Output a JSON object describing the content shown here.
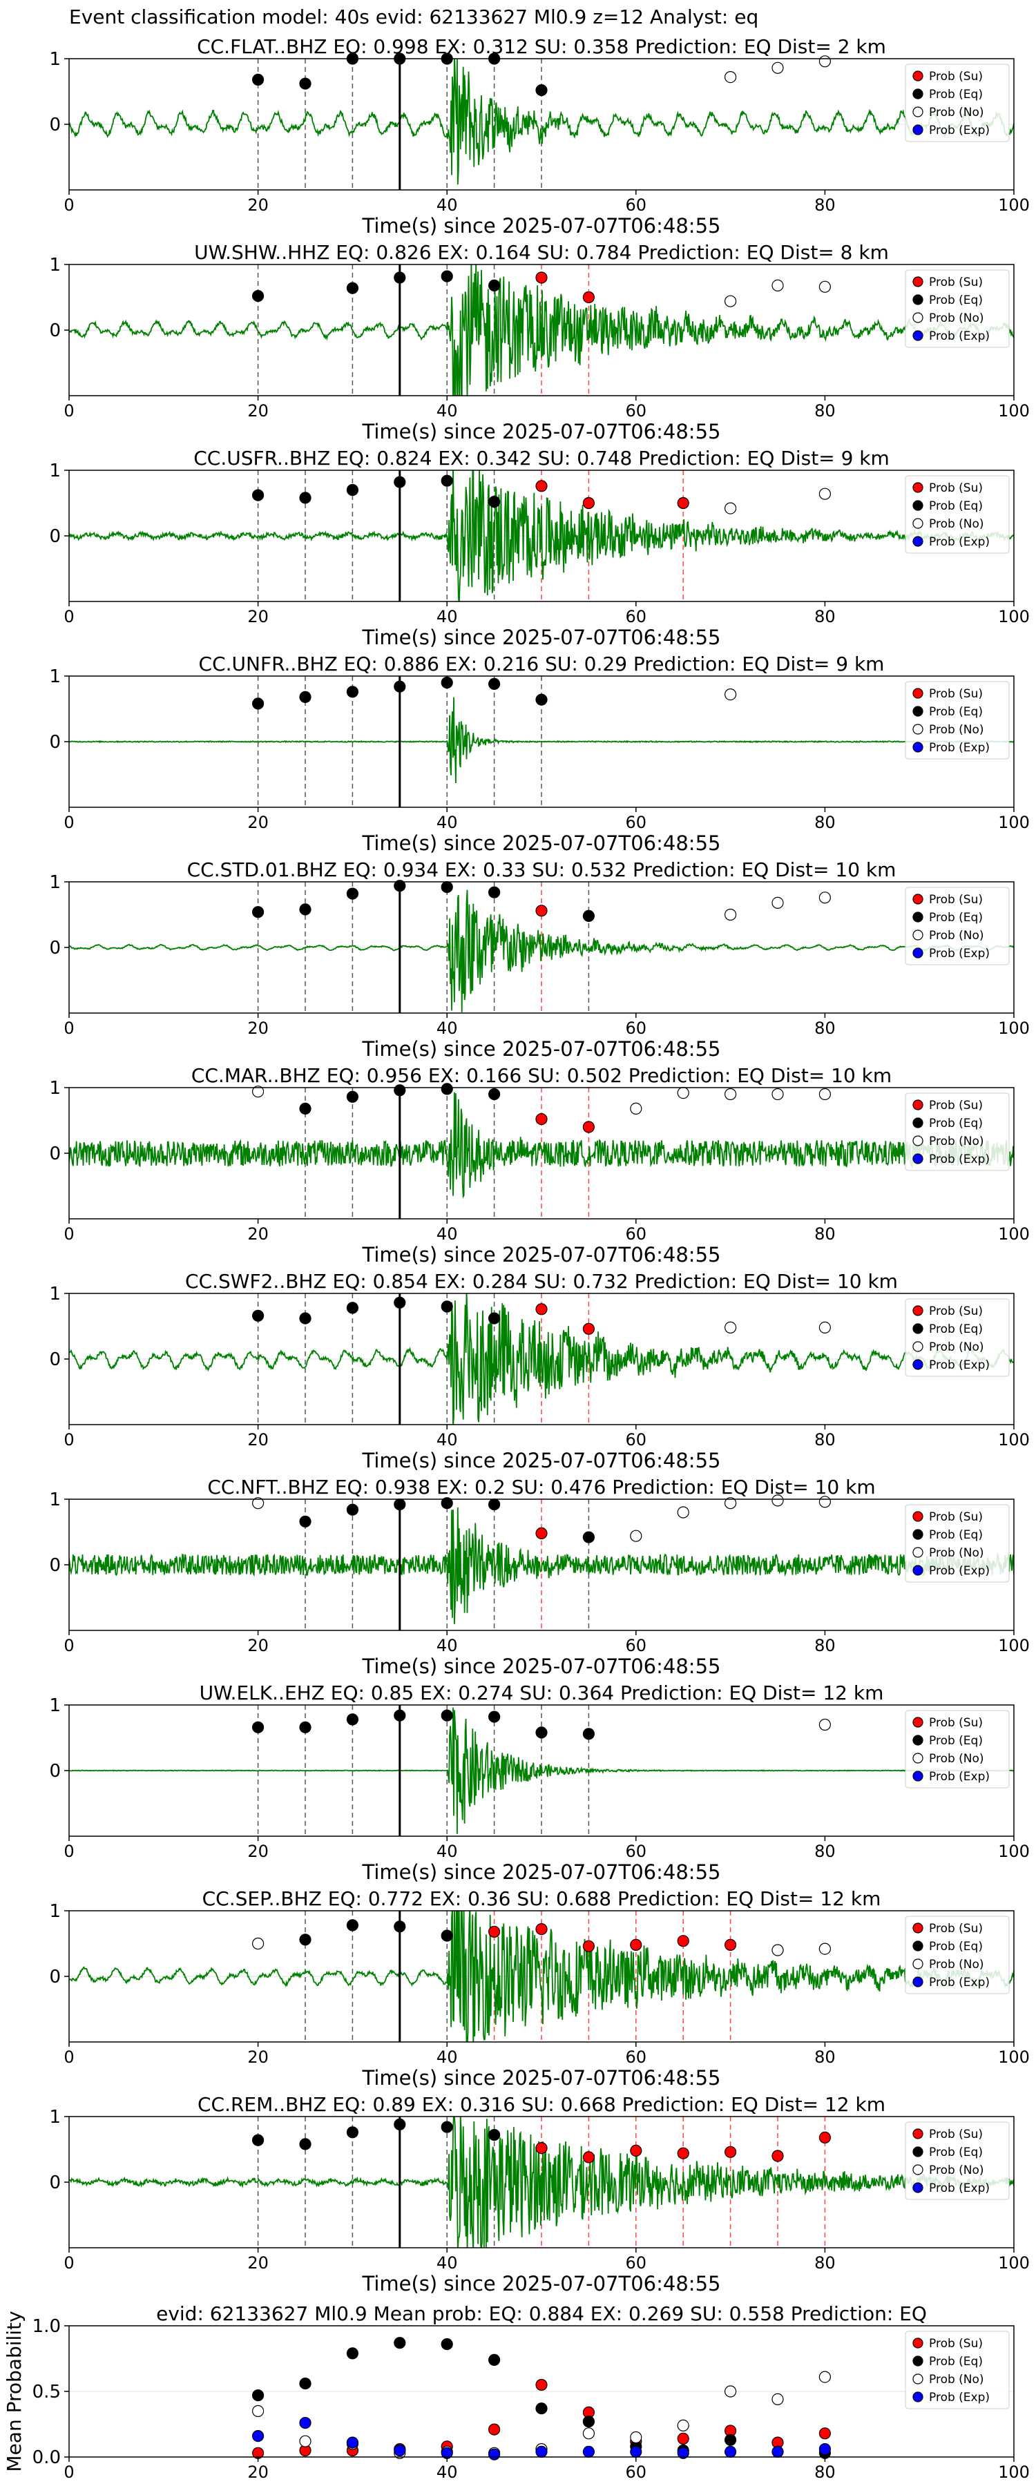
{
  "figure": {
    "suptitle": "Event classification model: 40s evid: 62133627 Ml0.9 z=12 Analyst: eq",
    "xlabel": "Time(s) since 2025-07-07T06:48:55",
    "legend": [
      "Prob (Su)",
      "Prob (Eq)",
      "Prob (No)",
      "Prob (Exp)"
    ],
    "colors": {
      "su": "#ff0000",
      "eq": "#000000",
      "no": "#ffffff",
      "exp": "#0000ff",
      "wave": "#008000",
      "vline_eq": "#555555",
      "vline_su": "#ff4444"
    }
  },
  "chart_data": [
    {
      "type": "scatter",
      "title": "CC.FLAT..BHZ   EQ: 0.998  EX: 0.312  SU: 0.358   Prediction: EQ    Dist= 2 km",
      "station": "CC.FLAT..BHZ",
      "xlim": [
        0,
        100
      ],
      "ylim": [
        -1,
        1
      ],
      "xticks": [
        0,
        20,
        40,
        60,
        80,
        100
      ],
      "yticks": [
        0,
        1
      ],
      "pick_time": 35,
      "waveform": {
        "noise": 0.18,
        "peak": 1.0,
        "duration": 10,
        "style": "lowfreq"
      },
      "series": [
        {
          "name": "Prob (Eq)",
          "x": [
            20,
            25,
            30,
            35,
            40,
            45,
            50
          ],
          "y": [
            0.68,
            0.62,
            1.0,
            1.0,
            1.0,
            1.0,
            0.52
          ]
        },
        {
          "name": "Prob (Su)",
          "x": [],
          "y": []
        },
        {
          "name": "Prob (No)",
          "x": [
            70,
            75,
            80
          ],
          "y": [
            0.72,
            0.86,
            0.96
          ]
        },
        {
          "name": "Prob (Exp)",
          "x": [],
          "y": []
        }
      ]
    },
    {
      "type": "scatter",
      "title": "UW.SHW..HHZ   EQ: 0.826  EX: 0.164  SU: 0.784   Prediction: EQ    Dist= 8 km",
      "station": "UW.SHW..HHZ",
      "xlim": [
        0,
        100
      ],
      "ylim": [
        -1,
        1
      ],
      "xticks": [
        0,
        20,
        40,
        60,
        80,
        100
      ],
      "yticks": [
        0,
        1
      ],
      "pick_time": 35,
      "waveform": {
        "noise": 0.12,
        "peak": 1.0,
        "duration": 30,
        "style": "lowfreq"
      },
      "series": [
        {
          "name": "Prob (Eq)",
          "x": [
            20,
            30,
            35,
            40,
            45
          ],
          "y": [
            0.52,
            0.64,
            0.8,
            0.82,
            0.68
          ]
        },
        {
          "name": "Prob (Su)",
          "x": [
            50,
            55
          ],
          "y": [
            0.8,
            0.5
          ]
        },
        {
          "name": "Prob (No)",
          "x": [
            70,
            75,
            80
          ],
          "y": [
            0.44,
            0.68,
            0.66
          ]
        },
        {
          "name": "Prob (Exp)",
          "x": [],
          "y": []
        }
      ]
    },
    {
      "type": "scatter",
      "title": "CC.USFR..BHZ   EQ: 0.824  EX: 0.342  SU: 0.748   Prediction: EQ    Dist= 9 km",
      "station": "CC.USFR..BHZ",
      "xlim": [
        0,
        100
      ],
      "ylim": [
        -1,
        1
      ],
      "xticks": [
        0,
        20,
        40,
        60,
        80,
        100
      ],
      "yticks": [
        0,
        1
      ],
      "pick_time": 35,
      "waveform": {
        "noise": 0.06,
        "peak": 1.0,
        "duration": 30,
        "style": "mixed"
      },
      "series": [
        {
          "name": "Prob (Eq)",
          "x": [
            20,
            25,
            30,
            35,
            40,
            45
          ],
          "y": [
            0.62,
            0.58,
            0.7,
            0.82,
            0.84,
            0.52
          ]
        },
        {
          "name": "Prob (Su)",
          "x": [
            50,
            55,
            65
          ],
          "y": [
            0.76,
            0.5,
            0.5
          ]
        },
        {
          "name": "Prob (No)",
          "x": [
            70,
            80
          ],
          "y": [
            0.42,
            0.64
          ]
        },
        {
          "name": "Prob (Exp)",
          "x": [],
          "y": []
        }
      ]
    },
    {
      "type": "scatter",
      "title": "CC.UNFR..BHZ   EQ: 0.886  EX: 0.216  SU: 0.29   Prediction: EQ    Dist= 9 km",
      "station": "CC.UNFR..BHZ",
      "xlim": [
        0,
        100
      ],
      "ylim": [
        -1,
        1
      ],
      "xticks": [
        0,
        20,
        40,
        60,
        80,
        100
      ],
      "yticks": [
        0,
        1
      ],
      "pick_time": 35,
      "waveform": {
        "noise": 0.015,
        "peak": 1.0,
        "duration": 3,
        "style": "flat"
      },
      "series": [
        {
          "name": "Prob (Eq)",
          "x": [
            20,
            25,
            30,
            35,
            40,
            45,
            50
          ],
          "y": [
            0.58,
            0.68,
            0.76,
            0.84,
            0.9,
            0.88,
            0.64
          ]
        },
        {
          "name": "Prob (Su)",
          "x": [],
          "y": []
        },
        {
          "name": "Prob (No)",
          "x": [
            70
          ],
          "y": [
            0.72
          ]
        },
        {
          "name": "Prob (Exp)",
          "x": [],
          "y": []
        }
      ]
    },
    {
      "type": "scatter",
      "title": "CC.STD.01.BHZ   EQ: 0.934  EX: 0.33  SU: 0.532   Prediction: EQ    Dist= 10 km",
      "station": "CC.STD.01.BHZ",
      "xlim": [
        0,
        100
      ],
      "ylim": [
        -1,
        1
      ],
      "xticks": [
        0,
        20,
        40,
        60,
        80,
        100
      ],
      "yticks": [
        0,
        1
      ],
      "pick_time": 35,
      "waveform": {
        "noise": 0.04,
        "peak": 1.0,
        "duration": 14,
        "style": "lowfreq"
      },
      "series": [
        {
          "name": "Prob (Eq)",
          "x": [
            20,
            25,
            30,
            35,
            40,
            45,
            55
          ],
          "y": [
            0.54,
            0.58,
            0.82,
            0.94,
            0.92,
            0.84,
            0.48
          ]
        },
        {
          "name": "Prob (Su)",
          "x": [
            50
          ],
          "y": [
            0.56
          ]
        },
        {
          "name": "Prob (No)",
          "x": [
            70,
            75,
            80
          ],
          "y": [
            0.5,
            0.68,
            0.76
          ]
        },
        {
          "name": "Prob (Exp)",
          "x": [],
          "y": []
        }
      ]
    },
    {
      "type": "scatter",
      "title": "CC.MAR..BHZ   EQ: 0.956  EX: 0.166  SU: 0.502   Prediction: EQ    Dist= 10 km",
      "station": "CC.MAR..BHZ",
      "xlim": [
        0,
        100
      ],
      "ylim": [
        -1,
        1
      ],
      "xticks": [
        0,
        20,
        40,
        60,
        80,
        100
      ],
      "yticks": [
        0,
        1
      ],
      "pick_time": 35,
      "waveform": {
        "noise": 0.2,
        "peak": 1.0,
        "duration": 6,
        "style": "highfreq"
      },
      "series": [
        {
          "name": "Prob (Eq)",
          "x": [
            25,
            30,
            35,
            40,
            45
          ],
          "y": [
            0.68,
            0.86,
            0.96,
            0.98,
            0.9
          ]
        },
        {
          "name": "Prob (Su)",
          "x": [
            50,
            55
          ],
          "y": [
            0.52,
            0.4
          ]
        },
        {
          "name": "Prob (No)",
          "x": [
            20,
            60,
            65,
            70,
            75,
            80
          ],
          "y": [
            0.94,
            0.68,
            0.92,
            0.9,
            0.9,
            0.9
          ]
        },
        {
          "name": "Prob (Exp)",
          "x": [],
          "y": []
        }
      ]
    },
    {
      "type": "scatter",
      "title": "CC.SWF2..BHZ   EQ: 0.854  EX: 0.284  SU: 0.732   Prediction: EQ    Dist= 10 km",
      "station": "CC.SWF2..BHZ",
      "xlim": [
        0,
        100
      ],
      "ylim": [
        -1,
        1
      ],
      "xticks": [
        0,
        20,
        40,
        60,
        80,
        100
      ],
      "yticks": [
        0,
        1
      ],
      "pick_time": 35,
      "waveform": {
        "noise": 0.14,
        "peak": 1.0,
        "duration": 25,
        "style": "lowfreq"
      },
      "series": [
        {
          "name": "Prob (Eq)",
          "x": [
            20,
            25,
            30,
            35,
            40,
            45
          ],
          "y": [
            0.66,
            0.62,
            0.78,
            0.86,
            0.8,
            0.62
          ]
        },
        {
          "name": "Prob (Su)",
          "x": [
            50,
            55
          ],
          "y": [
            0.76,
            0.46
          ]
        },
        {
          "name": "Prob (No)",
          "x": [
            70,
            80
          ],
          "y": [
            0.48,
            0.48
          ]
        },
        {
          "name": "Prob (Exp)",
          "x": [],
          "y": []
        }
      ]
    },
    {
      "type": "scatter",
      "title": "CC.NFT..BHZ   EQ: 0.938  EX: 0.2  SU: 0.476   Prediction: EQ    Dist= 10 km",
      "station": "CC.NFT..BHZ",
      "xlim": [
        0,
        100
      ],
      "ylim": [
        -1,
        1
      ],
      "xticks": [
        0,
        20,
        40,
        60,
        80,
        100
      ],
      "yticks": [
        0,
        1
      ],
      "pick_time": 35,
      "waveform": {
        "noise": 0.16,
        "peak": 1.0,
        "duration": 8,
        "style": "highfreq"
      },
      "series": [
        {
          "name": "Prob (Eq)",
          "x": [
            25,
            30,
            35,
            40,
            45,
            55
          ],
          "y": [
            0.66,
            0.84,
            0.92,
            0.94,
            0.92,
            0.42
          ]
        },
        {
          "name": "Prob (Su)",
          "x": [
            50
          ],
          "y": [
            0.48
          ]
        },
        {
          "name": "Prob (No)",
          "x": [
            20,
            60,
            65,
            70,
            75,
            80
          ],
          "y": [
            0.94,
            0.44,
            0.8,
            0.94,
            0.98,
            0.96
          ]
        },
        {
          "name": "Prob (Exp)",
          "x": [],
          "y": []
        }
      ]
    },
    {
      "type": "scatter",
      "title": "UW.ELK..EHZ   EQ: 0.85  EX: 0.274  SU: 0.364   Prediction: EQ    Dist= 12 km",
      "station": "UW.ELK..EHZ",
      "xlim": [
        0,
        100
      ],
      "ylim": [
        -1,
        1
      ],
      "xticks": [
        0,
        20,
        40,
        60,
        80,
        100
      ],
      "yticks": [
        0,
        1
      ],
      "pick_time": 35,
      "waveform": {
        "noise": 0.01,
        "peak": 1.0,
        "duration": 9,
        "style": "flat"
      },
      "series": [
        {
          "name": "Prob (Eq)",
          "x": [
            20,
            25,
            30,
            35,
            40,
            45,
            50,
            55
          ],
          "y": [
            0.66,
            0.66,
            0.78,
            0.84,
            0.84,
            0.82,
            0.58,
            0.56
          ]
        },
        {
          "name": "Prob (Su)",
          "x": [],
          "y": []
        },
        {
          "name": "Prob (No)",
          "x": [
            80
          ],
          "y": [
            0.7
          ]
        },
        {
          "name": "Prob (Exp)",
          "x": [],
          "y": []
        }
      ]
    },
    {
      "type": "scatter",
      "title": "CC.SEP..BHZ   EQ: 0.772  EX: 0.36  SU: 0.688   Prediction: EQ    Dist= 12 km",
      "station": "CC.SEP..BHZ",
      "xlim": [
        0,
        100
      ],
      "ylim": [
        -1,
        1
      ],
      "xticks": [
        0,
        20,
        40,
        60,
        80,
        100
      ],
      "yticks": [
        0,
        1
      ],
      "pick_time": 35,
      "waveform": {
        "noise": 0.12,
        "peak": 1.0,
        "duration": 40,
        "style": "lowfreq"
      },
      "series": [
        {
          "name": "Prob (Eq)",
          "x": [
            25,
            30,
            35,
            40
          ],
          "y": [
            0.56,
            0.78,
            0.76,
            0.62
          ]
        },
        {
          "name": "Prob (Su)",
          "x": [
            45,
            50,
            55,
            60,
            65,
            70
          ],
          "y": [
            0.68,
            0.72,
            0.46,
            0.48,
            0.54,
            0.48
          ]
        },
        {
          "name": "Prob (No)",
          "x": [
            20,
            75,
            80
          ],
          "y": [
            0.5,
            0.4,
            0.42
          ]
        },
        {
          "name": "Prob (Exp)",
          "x": [],
          "y": []
        }
      ]
    },
    {
      "type": "scatter",
      "title": "CC.REM..BHZ   EQ: 0.89  EX: 0.316  SU: 0.668   Prediction: EQ    Dist= 12 km",
      "station": "CC.REM..BHZ",
      "xlim": [
        0,
        100
      ],
      "ylim": [
        -1,
        1
      ],
      "xticks": [
        0,
        20,
        40,
        60,
        80,
        100
      ],
      "yticks": [
        0,
        1
      ],
      "pick_time": 35,
      "waveform": {
        "noise": 0.06,
        "peak": 1.0,
        "duration": 40,
        "style": "mixed"
      },
      "series": [
        {
          "name": "Prob (Eq)",
          "x": [
            20,
            25,
            30,
            35,
            40,
            45
          ],
          "y": [
            0.64,
            0.58,
            0.76,
            0.88,
            0.84,
            0.72
          ]
        },
        {
          "name": "Prob (Su)",
          "x": [
            50,
            55,
            60,
            65,
            70,
            75,
            80
          ],
          "y": [
            0.52,
            0.38,
            0.48,
            0.44,
            0.46,
            0.4,
            0.68
          ]
        },
        {
          "name": "Prob (No)",
          "x": [],
          "y": []
        },
        {
          "name": "Prob (Exp)",
          "x": [],
          "y": []
        }
      ]
    },
    {
      "type": "scatter",
      "title": "evid: 62133627  Ml0.9   Mean prob:   EQ: 0.884  EX: 0.269  SU: 0.558   Prediction: EQ",
      "ylabel": "Mean Probability",
      "xlim": [
        0,
        100
      ],
      "ylim": [
        0,
        1
      ],
      "xticks": [
        0,
        20,
        40,
        60,
        80,
        100
      ],
      "yticks": [
        0.0,
        0.5,
        1.0
      ],
      "series": [
        {
          "name": "Prob (Su)",
          "x": [
            20,
            25,
            30,
            35,
            40,
            45,
            50,
            55,
            60,
            65,
            70,
            75,
            80
          ],
          "y": [
            0.03,
            0.05,
            0.05,
            0.06,
            0.08,
            0.21,
            0.55,
            0.34,
            0.12,
            0.14,
            0.2,
            0.11,
            0.18
          ]
        },
        {
          "name": "Prob (Eq)",
          "x": [
            20,
            25,
            30,
            35,
            40,
            45,
            50,
            55,
            60,
            65,
            70,
            75,
            80
          ],
          "y": [
            0.47,
            0.56,
            0.79,
            0.87,
            0.86,
            0.74,
            0.37,
            0.27,
            0.08,
            0.05,
            0.13,
            0.04,
            0.03
          ]
        },
        {
          "name": "Prob (No)",
          "x": [
            20,
            25,
            30,
            35,
            40,
            45,
            50,
            55,
            60,
            65,
            70,
            75,
            80
          ],
          "y": [
            0.35,
            0.12,
            0.1,
            0.03,
            0.04,
            0.03,
            0.06,
            0.18,
            0.15,
            0.24,
            0.5,
            0.44,
            0.61
          ]
        },
        {
          "name": "Prob (Exp)",
          "x": [
            20,
            25,
            30,
            35,
            40,
            45,
            50,
            55,
            60,
            65,
            70,
            75,
            80
          ],
          "y": [
            0.16,
            0.26,
            0.11,
            0.05,
            0.03,
            0.02,
            0.04,
            0.04,
            0.04,
            0.03,
            0.04,
            0.04,
            0.06
          ]
        }
      ]
    }
  ]
}
